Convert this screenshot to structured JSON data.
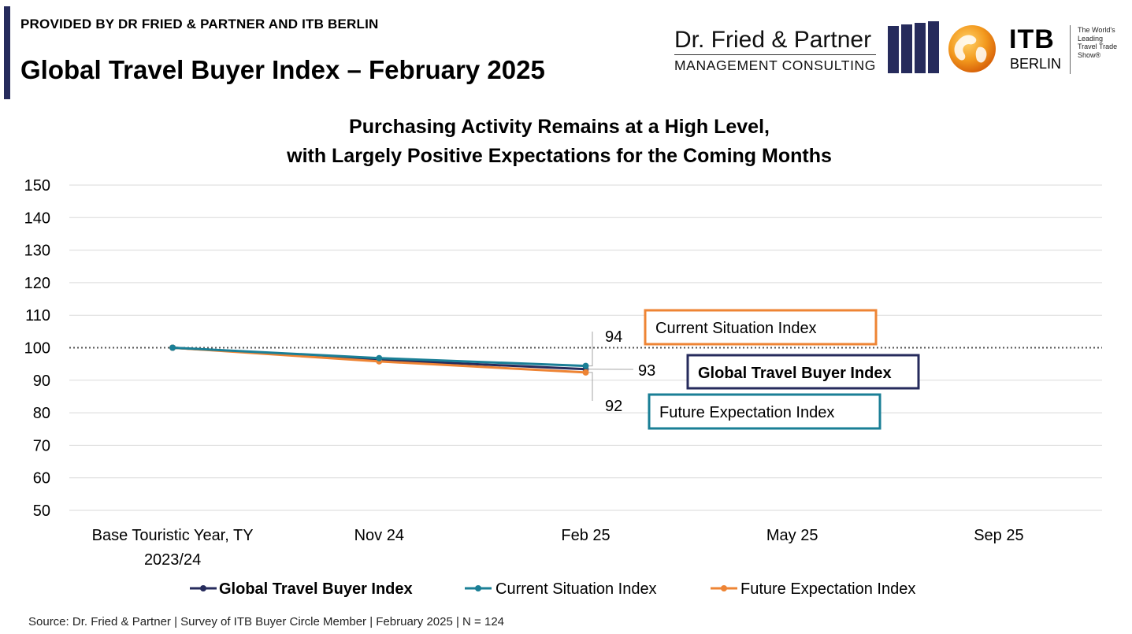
{
  "header": {
    "provided_by": "PROVIDED BY DR FRIED & PARTNER AND ITB BERLIN",
    "title": "Global Travel Buyer Index – February 2025"
  },
  "logos": {
    "fried_line1": "Dr. Fried & Partner",
    "fried_line2": "MANAGEMENT CONSULTING",
    "itb_word": "ITB",
    "itb_city": "BERLIN",
    "itb_tagline": [
      "The World's",
      "Leading",
      "Travel Trade",
      "Show®"
    ]
  },
  "chart_data": {
    "type": "line",
    "title": "Purchasing Activity Remains at a High Level,",
    "subtitle": "with Largely Positive Expectations for the Coming Months",
    "categories": [
      "Base Touristic Year, TY 2023/24",
      "Nov 24",
      "Feb 25",
      "May 25",
      "Sep 25"
    ],
    "category_labels": [
      [
        "Base Touristic Year, TY",
        "2023/24"
      ],
      [
        "Nov 24"
      ],
      [
        "Feb 25"
      ],
      [
        "May 25"
      ],
      [
        "Sep 25"
      ]
    ],
    "ylim": [
      50,
      150
    ],
    "yticks": [
      50,
      60,
      70,
      80,
      90,
      100,
      110,
      120,
      130,
      140,
      150
    ],
    "reference_line": 100,
    "grid": true,
    "legend_position": "bottom",
    "series": [
      {
        "name": "Global Travel Buyer Index",
        "color": "#262b5c",
        "values": [
          100,
          96.3,
          93.4,
          null,
          null
        ],
        "end_label": "93",
        "bold": true
      },
      {
        "name": "Current Situation Index",
        "color": "#1a7f96",
        "values": [
          100,
          96.8,
          94.4,
          null,
          null
        ],
        "end_label": "94",
        "bold": false
      },
      {
        "name": "Future Expectation Index",
        "color": "#ee8434",
        "values": [
          100,
          95.8,
          92.4,
          null,
          null
        ],
        "end_label": "92",
        "bold": false
      }
    ],
    "callouts": [
      {
        "text": "Current Situation Index",
        "border_color": "#ee8434",
        "bold": false
      },
      {
        "text": "Global Travel Buyer Index",
        "border_color": "#262b5c",
        "bold": true
      },
      {
        "text": "Future Expectation Index",
        "border_color": "#1a7f96",
        "bold": false
      }
    ]
  },
  "footer": {
    "source": "Source: Dr. Fried & Partner | Survey of ITB Buyer Circle Member | February 2025 | N = 124"
  }
}
